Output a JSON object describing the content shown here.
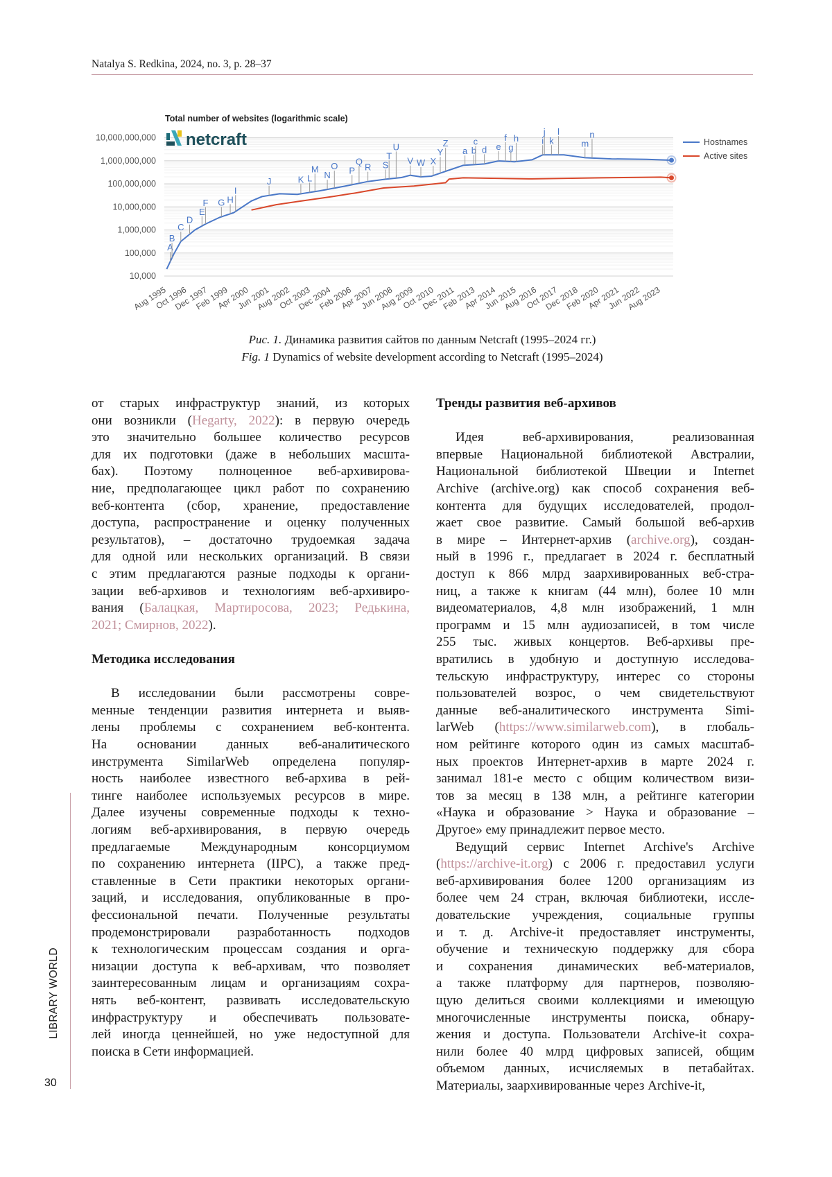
{
  "header": {
    "running_head": "Natalya S. Redkina, 2024, no. 3, p. 28–37"
  },
  "sidebar": {
    "journal": "LIBRARY WORLD",
    "page_number": "30"
  },
  "colors": {
    "accent_rule": "#c9a0a8",
    "link": "#c0909a",
    "hostnames": "#4a78c8",
    "active_sites": "#d9482b"
  },
  "figure": {
    "caption_ru_label": "Рис. 1.",
    "caption_ru": " Динамика развития сайтов по данным Netcraft (1995–2024 гг.)",
    "caption_en_label": "Fig. 1",
    "caption_en": " Dynamics of website development according to Netcraft (1995–2024)",
    "logo_text": "netcraft"
  },
  "chart_data": {
    "type": "line",
    "title": "Total number of websites (logarithmic scale)",
    "y_scale": "log",
    "ylim": [
      10000,
      10000000000
    ],
    "y_ticks": [
      "10,000",
      "100,000",
      "1,000,000",
      "10,000,000",
      "100,000,000",
      "1,000,000,000",
      "10,000,000,000"
    ],
    "x_ticks": [
      "Aug 1995",
      "Oct 1996",
      "Dec 1997",
      "Feb 1999",
      "Apr 2000",
      "Jun 2001",
      "Aug 2002",
      "Oct 2003",
      "Dec 2004",
      "Feb 2006",
      "Apr 2007",
      "Jun 2008",
      "Aug 2009",
      "Oct 2010",
      "Dec 2011",
      "Feb 2013",
      "Apr 2014",
      "Jun 2015",
      "Aug 2016",
      "Oct 2017",
      "Dec 2018",
      "Feb 2020",
      "Apr 2021",
      "Jun 2022",
      "Aug 2023"
    ],
    "grid": true,
    "legend": "right",
    "series": [
      {
        "name": "Hostnames",
        "color": "#4a78c8",
        "x": [
          1995.6,
          1996.0,
          1996.4,
          1997.2,
          1997.8,
          1998.6,
          1999.4,
          2000.4,
          2001.0,
          2002.0,
          2003.0,
          2004.3,
          2005.7,
          2007.0,
          2008.0,
          2008.9,
          2009.4,
          2010.0,
          2010.6,
          2011.4,
          2012.4,
          2013.6,
          2014.4,
          2015.3,
          2016.3,
          2016.9,
          2018.1,
          2019.3,
          2020.8,
          2022.8,
          2024.2
        ],
        "y": [
          20000,
          89000,
          316000,
          1000000,
          1800000,
          3500000,
          5600000,
          18000000,
          28000000,
          37000000,
          35000000,
          50000000,
          79000000,
          126000000,
          158000000,
          186000000,
          234000000,
          200000000,
          214000000,
          347000000,
          631000000,
          725000000,
          980000000,
          900000000,
          1100000000,
          1800000000,
          1800000000,
          1350000000,
          1200000000,
          1150000000,
          1050000000
        ]
      },
      {
        "name": "Active sites",
        "color": "#d9482b",
        "x": [
          2000.4,
          2001.8,
          2003.0,
          2005.0,
          2006.3,
          2007.9,
          2009.6,
          2011.4,
          2011.6,
          2012.4,
          2016.3,
          2020.2,
          2023.6,
          2024.2
        ],
        "y": [
          7300000,
          12400000,
          17000000,
          28000000,
          40000000,
          66000000,
          80000000,
          112000000,
          160000000,
          182000000,
          163000000,
          182000000,
          195000000,
          182000000
        ]
      }
    ],
    "annotations": [
      {
        "label": "A",
        "x": 1995.8
      },
      {
        "label": "B",
        "x": 1995.9
      },
      {
        "label": "C",
        "x": 1996.4
      },
      {
        "label": "D",
        "x": 1996.9
      },
      {
        "label": "E",
        "x": 1997.6
      },
      {
        "label": "F",
        "x": 1997.8
      },
      {
        "label": "G",
        "x": 1998.7
      },
      {
        "label": "H",
        "x": 1999.2
      },
      {
        "label": "I",
        "x": 1999.5
      },
      {
        "label": "J",
        "x": 2001.4
      },
      {
        "label": "K",
        "x": 2003.2
      },
      {
        "label": "L",
        "x": 2003.7
      },
      {
        "label": "M",
        "x": 2004.0
      },
      {
        "label": "N",
        "x": 2004.7
      },
      {
        "label": "O",
        "x": 2005.1
      },
      {
        "label": "P",
        "x": 2006.1
      },
      {
        "label": "Q",
        "x": 2006.5
      },
      {
        "label": "R",
        "x": 2007.0
      },
      {
        "label": "S",
        "x": 2008.0
      },
      {
        "label": "T",
        "x": 2008.2
      },
      {
        "label": "U",
        "x": 2008.6
      },
      {
        "label": "V",
        "x": 2009.4
      },
      {
        "label": "W",
        "x": 2010.0
      },
      {
        "label": "X",
        "x": 2010.7
      },
      {
        "label": "Y",
        "x": 2011.1
      },
      {
        "label": "Z",
        "x": 2011.4
      },
      {
        "label": "a",
        "x": 2012.5
      },
      {
        "label": "b",
        "x": 2013.0
      },
      {
        "label": "c",
        "x": 2013.1
      },
      {
        "label": "d",
        "x": 2013.6
      },
      {
        "label": "e",
        "x": 2014.4
      },
      {
        "label": "f",
        "x": 2014.8
      },
      {
        "label": "g",
        "x": 2015.1
      },
      {
        "label": "h",
        "x": 2015.4
      },
      {
        "label": "i",
        "x": 2016.9
      },
      {
        "label": "j",
        "x": 2017.0
      },
      {
        "label": "k",
        "x": 2017.4
      },
      {
        "label": "l",
        "x": 2017.8
      },
      {
        "label": "m",
        "x": 2019.3
      },
      {
        "label": "n",
        "x": 2019.7
      }
    ]
  },
  "left_column": [
    {
      "type": "para",
      "indent": false,
      "lines": [
        "от старых инфраструктур знаний, из которых",
        [
          "они возникли (",
          {
            "link": "Hegarty, 2022"
          },
          "): в первую очередь"
        ],
        "это значительно большее количество ресурсов",
        "для их подготовки (даже в небольших масшта-",
        "бах). Поэтому полноценное веб-архивирова-",
        "ние, предполагающее цикл работ по сохранению",
        "веб-контента (сбор, хранение, предоставление",
        "доступа, распространение и оценку полученных",
        "результатов), – достаточно трудоемкая задача",
        "для одной или нескольких организаций. В связи",
        "с этим предлагаются разные подходы к органи-",
        "зации веб-архивов и технологиям веб-архивиро-",
        [
          "вания (",
          {
            "link": "Балацкая, Мартиросова, 2023; Редькина,"
          }
        ],
        [
          {
            "link": "2021; Смирнов, 2022"
          },
          ")."
        ]
      ]
    },
    {
      "type": "heading",
      "text": "Методика исследования"
    },
    {
      "type": "para",
      "indent": true,
      "lines": [
        "В исследовании были рассмотрены совре-",
        "менные тенденции развития интернета и выяв-",
        "лены проблемы с сохранением веб-контента.",
        "На основании данных веб-аналитического",
        "инструмента SimilarWeb определена популяр-",
        "ность наиболее известного веб-архива в рей-",
        "тинге наиболее используемых ресурсов в мире.",
        "Далее изучены современные подходы к техно-",
        "логиям веб-архивирования, в первую очередь",
        "предлагаемые Международным консорциумом",
        "по сохранению интернета (IIPC), а также пред-",
        "ставленные в Сети практики некоторых органи-",
        "заций, и исследования, опубликованные в про-",
        "фессиональной печати. Полученные результаты",
        "продемонстрировали разработанность подходов",
        "к технологическим процессам создания и орга-",
        "низации доступа к веб-архивам, что позволяет",
        "заинтересованным лицам и организациям сохра-",
        "нять веб-контент, развивать исследовательскую",
        "инфраструктуру и обеспечивать пользовате-",
        "лей иногда ценнейшей, но уже недоступной для",
        "поиска в Сети информацией."
      ]
    }
  ],
  "right_column": [
    {
      "type": "heading",
      "text": "Тренды развития веб-архивов"
    },
    {
      "type": "para",
      "indent": true,
      "lines": [
        "Идея веб-архивирования, реализованная",
        "впервые Национальной библиотекой Австралии,",
        "Национальной библиотекой Швеции и Internet",
        "Archive (archive.org) как способ сохранения веб-",
        "контента для будущих исследователей, продол-",
        "жает свое развитие. Самый большой веб-архив",
        [
          "в мире – Интернет-архив (",
          {
            "link": "archive.org"
          },
          "), создан-"
        ],
        "ный в 1996 г., предлагает в 2024 г. бесплатный",
        "доступ к 866 млрд заархивированных веб-стра-",
        "ниц, а также к книгам (44 млн), более 10 млн",
        "видеоматериалов, 4,8 млн изображений, 1 млн",
        "программ и 15 млн аудиозаписей, в том числе",
        "255 тыс. живых концертов. Веб-архивы пре-",
        "вратились в удобную и доступную исследова-",
        "тельскую инфраструктуру, интерес со стороны",
        "пользователей возрос, о чем свидетельствуют",
        "данные веб-аналитического инструмента Simi-",
        [
          "larWeb (",
          {
            "link": "https://www.similarweb.com"
          },
          "), в глобаль-"
        ],
        "ном рейтинге которого один из самых масштаб-",
        "ных проектов Интернет-архив в марте 2024 г.",
        "занимал 181-е место с общим количеством визи-",
        "тов за месяц в 138 млн, а рейтинге категории",
        "«Наука и образование > Наука и образование –",
        "Другое» ему принадлежит первое место."
      ]
    },
    {
      "type": "para",
      "indent": true,
      "cont": true,
      "lines": [
        "Ведущий сервис Internet Archive's Archive",
        [
          "(",
          {
            "link": "https://archive-it.org"
          },
          ") с 2006 г. предоставил услуги"
        ],
        "веб-архивирования более 1200 организациям из",
        "более чем 24 стран, включая библиотеки, иссле-",
        "довательские учреждения, социальные группы",
        "и т. д. Archive-it предоставляет инструменты,",
        "обучение и техническую поддержку для сбора",
        "и сохранения динамических веб-материалов,",
        "а также платформу для партнеров, позволяю-",
        "щую делиться своими коллекциями и имеющую",
        "многочисленные инструменты поиска, обнару-",
        "жения и доступа. Пользователи Archive-it сохра-",
        "нили более 40 млрд цифровых записей, общим",
        "объемом данных, исчисляемых в петабайтах.",
        "Материалы, заархивированные через Archive-it,"
      ]
    }
  ]
}
